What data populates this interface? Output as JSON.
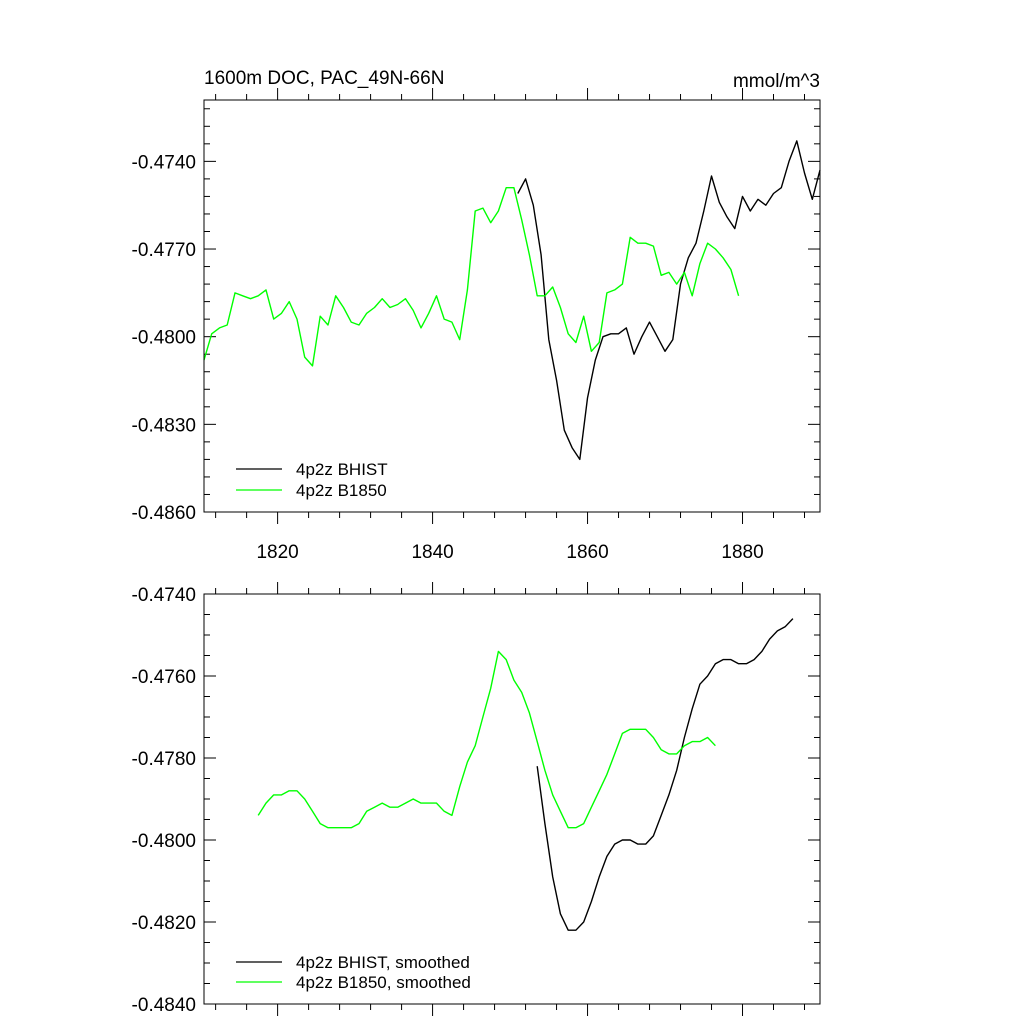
{
  "chart_data": [
    {
      "type": "line",
      "title": "1600m DOC, PAC_49N-66N",
      "units_label": "mmol/m^3",
      "xlabel": "",
      "ylabel": "",
      "xlim": [
        1810.5,
        1890
      ],
      "ylim": [
        -0.486,
        -0.4719
      ],
      "x_ticks": [
        1820,
        1840,
        1860,
        1880
      ],
      "x_tick_labels": [
        "1820",
        "1840",
        "1860",
        "1880"
      ],
      "y_ticks": [
        -0.486,
        -0.483,
        -0.48,
        -0.477,
        -0.474
      ],
      "y_tick_labels": [
        "-0.4860",
        "-0.4830",
        "-0.4800",
        "-0.4770",
        "-0.4740"
      ],
      "legend_position": "bottom-left",
      "series": [
        {
          "name": "4p2z BHIST",
          "color": "#000000",
          "x": [
            1851,
            1852,
            1853,
            1854,
            1855,
            1856,
            1857,
            1858,
            1859,
            1860,
            1861,
            1862,
            1863,
            1864,
            1865,
            1866,
            1867,
            1868,
            1869,
            1870,
            1871,
            1872,
            1873,
            1874,
            1875,
            1876,
            1877,
            1878,
            1879,
            1880,
            1881,
            1882,
            1883,
            1884,
            1885,
            1886,
            1887,
            1888,
            1889,
            1890
          ],
          "y": [
            -0.4751,
            -0.4746,
            -0.4755,
            -0.4772,
            -0.4801,
            -0.4815,
            -0.4832,
            -0.4838,
            -0.4842,
            -0.4821,
            -0.4808,
            -0.48,
            -0.4799,
            -0.4799,
            -0.4797,
            -0.4806,
            -0.48,
            -0.4795,
            -0.48,
            -0.4805,
            -0.4801,
            -0.4782,
            -0.4773,
            -0.4768,
            -0.4757,
            -0.4745,
            -0.4754,
            -0.4759,
            -0.4763,
            -0.4752,
            -0.4757,
            -0.4753,
            -0.4755,
            -0.4751,
            -0.4749,
            -0.474,
            -0.4733,
            -0.4744,
            -0.4753,
            -0.4743
          ]
        },
        {
          "name": "4p2z B1850",
          "color": "#00ff00",
          "x": [
            1810.5,
            1811.5,
            1812.5,
            1813.5,
            1814.5,
            1815.5,
            1816.5,
            1817.5,
            1818.5,
            1819.5,
            1820.5,
            1821.5,
            1822.5,
            1823.5,
            1824.5,
            1825.5,
            1826.5,
            1827.5,
            1828.5,
            1829.5,
            1830.5,
            1831.5,
            1832.5,
            1833.5,
            1834.5,
            1835.5,
            1836.5,
            1837.5,
            1838.5,
            1839.5,
            1840.5,
            1841.5,
            1842.5,
            1843.5,
            1844.5,
            1845.5,
            1846.5,
            1847.5,
            1848.5,
            1849.5,
            1850.5,
            1851.5,
            1852.5,
            1853.5,
            1854.5,
            1855.5,
            1856.5,
            1857.5,
            1858.5,
            1859.5,
            1860.5,
            1861.5,
            1862.5,
            1863.5,
            1864.5,
            1865.5,
            1866.5,
            1867.5,
            1868.5,
            1869.5,
            1870.5,
            1871.5,
            1872.5,
            1873.5,
            1874.5,
            1875.5,
            1876.5,
            1877.5,
            1878.5,
            1879.5
          ],
          "y": [
            -0.4808,
            -0.4799,
            -0.4797,
            -0.4796,
            -0.4785,
            -0.4786,
            -0.4787,
            -0.4786,
            -0.4784,
            -0.4794,
            -0.4792,
            -0.4788,
            -0.4794,
            -0.4807,
            -0.481,
            -0.4793,
            -0.4796,
            -0.4786,
            -0.479,
            -0.4795,
            -0.4796,
            -0.4792,
            -0.479,
            -0.4787,
            -0.479,
            -0.4789,
            -0.4787,
            -0.4791,
            -0.4797,
            -0.4792,
            -0.4786,
            -0.4794,
            -0.4795,
            -0.4801,
            -0.4784,
            -0.4757,
            -0.4756,
            -0.4761,
            -0.4757,
            -0.4749,
            -0.4749,
            -0.476,
            -0.4772,
            -0.4786,
            -0.4786,
            -0.4783,
            -0.479,
            -0.4799,
            -0.4802,
            -0.4793,
            -0.4805,
            -0.4802,
            -0.4785,
            -0.4784,
            -0.4782,
            -0.4766,
            -0.4768,
            -0.4768,
            -0.4769,
            -0.4779,
            -0.4778,
            -0.4782,
            -0.4778,
            -0.4786,
            -0.4775,
            -0.4768,
            -0.477,
            -0.4773,
            -0.4777,
            -0.4786
          ]
        }
      ]
    },
    {
      "type": "line",
      "title": "",
      "xlabel": "",
      "ylabel": "",
      "xlim": [
        1810.5,
        1890
      ],
      "ylim": [
        -0.484,
        -0.474
      ],
      "x_ticks": [
        1820,
        1840,
        1860,
        1880
      ],
      "x_tick_labels": [
        "",
        "",
        "",
        ""
      ],
      "y_ticks": [
        -0.484,
        -0.482,
        -0.48,
        -0.478,
        -0.476,
        -0.474
      ],
      "y_tick_labels": [
        "-0.4840",
        "-0.4820",
        "-0.4800",
        "-0.4780",
        "-0.4760",
        "-0.4740"
      ],
      "legend_position": "bottom-left",
      "series": [
        {
          "name": "4p2z BHIST, smoothed",
          "color": "#000000",
          "x": [
            1853.5,
            1854.5,
            1855.5,
            1856.5,
            1857.5,
            1858.5,
            1859.5,
            1860.5,
            1861.5,
            1862.5,
            1863.5,
            1864.5,
            1865.5,
            1866.5,
            1867.5,
            1868.5,
            1869.5,
            1870.5,
            1871.5,
            1872.5,
            1873.5,
            1874.5,
            1875.5,
            1876.5,
            1877.5,
            1878.5,
            1879.5,
            1880.5,
            1881.5,
            1882.5,
            1883.5,
            1884.5,
            1885.5,
            1886.5
          ],
          "y": [
            -0.4782,
            -0.4796,
            -0.4809,
            -0.4818,
            -0.4822,
            -0.4822,
            -0.482,
            -0.4815,
            -0.4809,
            -0.4804,
            -0.4801,
            -0.48,
            -0.48,
            -0.4801,
            -0.4801,
            -0.4799,
            -0.4794,
            -0.4789,
            -0.4783,
            -0.4775,
            -0.4768,
            -0.4762,
            -0.476,
            -0.4757,
            -0.4756,
            -0.4756,
            -0.4757,
            -0.4757,
            -0.4756,
            -0.4754,
            -0.4751,
            -0.4749,
            -0.4748,
            -0.4746
          ]
        },
        {
          "name": "4p2z B1850, smoothed",
          "color": "#00ff00",
          "x": [
            1817.5,
            1818.5,
            1819.5,
            1820.5,
            1821.5,
            1822.5,
            1823.5,
            1824.5,
            1825.5,
            1826.5,
            1827.5,
            1828.5,
            1829.5,
            1830.5,
            1831.5,
            1832.5,
            1833.5,
            1834.5,
            1835.5,
            1836.5,
            1837.5,
            1838.5,
            1839.5,
            1840.5,
            1841.5,
            1842.5,
            1843.5,
            1844.5,
            1845.5,
            1846.5,
            1847.5,
            1848.5,
            1849.5,
            1850.5,
            1851.5,
            1852.5,
            1853.5,
            1854.5,
            1855.5,
            1856.5,
            1857.5,
            1858.5,
            1859.5,
            1860.5,
            1861.5,
            1862.5,
            1863.5,
            1864.5,
            1865.5,
            1866.5,
            1867.5,
            1868.5,
            1869.5,
            1870.5,
            1871.5,
            1872.5,
            1873.5,
            1874.5,
            1875.5,
            1876.5
          ],
          "y": [
            -0.4794,
            -0.4791,
            -0.4789,
            -0.4789,
            -0.4788,
            -0.4788,
            -0.479,
            -0.4793,
            -0.4796,
            -0.4797,
            -0.4797,
            -0.4797,
            -0.4797,
            -0.4796,
            -0.4793,
            -0.4792,
            -0.4791,
            -0.4792,
            -0.4792,
            -0.4791,
            -0.479,
            -0.4791,
            -0.4791,
            -0.4791,
            -0.4793,
            -0.4794,
            -0.4787,
            -0.4781,
            -0.4777,
            -0.477,
            -0.4763,
            -0.4754,
            -0.4756,
            -0.4761,
            -0.4764,
            -0.4769,
            -0.4776,
            -0.4783,
            -0.4789,
            -0.4793,
            -0.4797,
            -0.4797,
            -0.4796,
            -0.4792,
            -0.4788,
            -0.4784,
            -0.4779,
            -0.4774,
            -0.4773,
            -0.4773,
            -0.4773,
            -0.4775,
            -0.4778,
            -0.4779,
            -0.4779,
            -0.4777,
            -0.4776,
            -0.4776,
            -0.4775,
            -0.4777
          ]
        }
      ]
    }
  ]
}
